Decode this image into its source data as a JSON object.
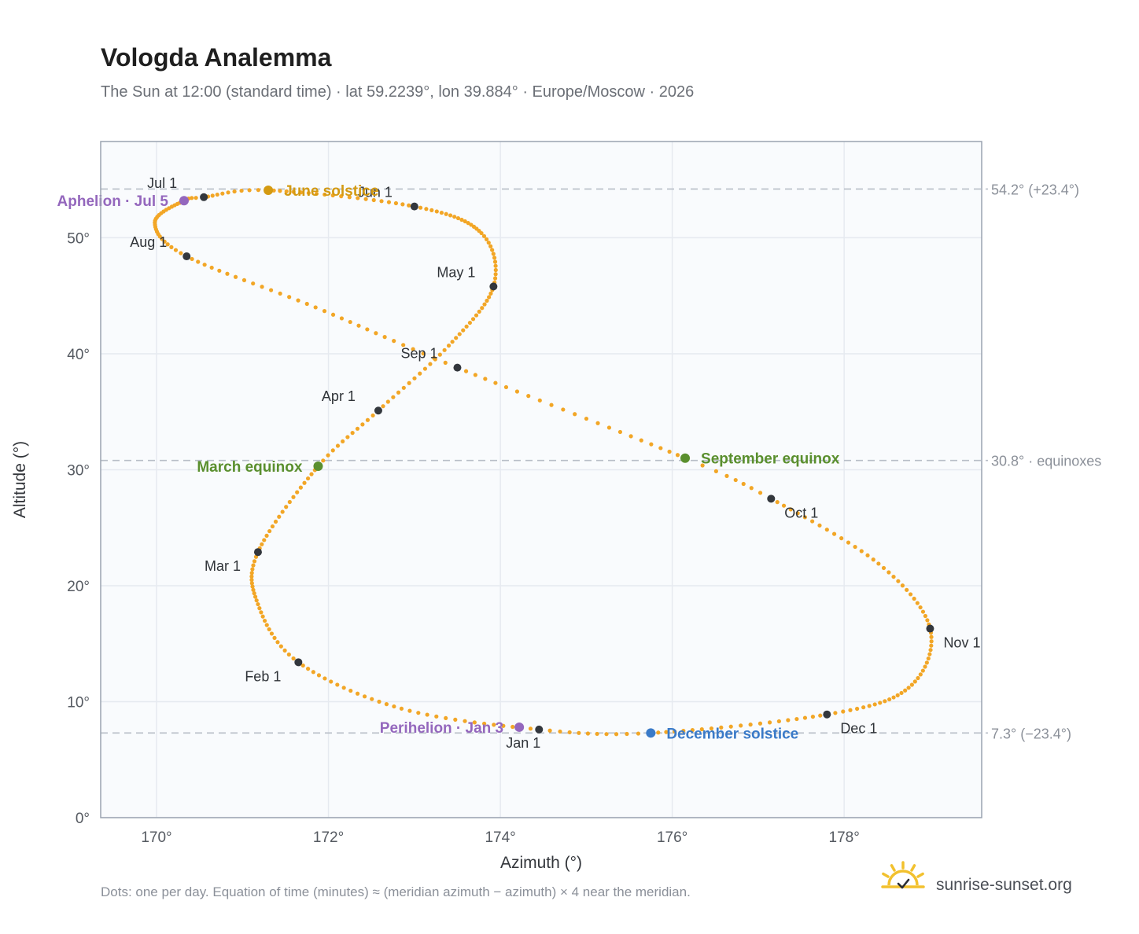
{
  "header": {
    "title": "Vologda Analemma",
    "subtitle": "The Sun at 12:00 (standard time) · lat 59.2239°, lon 39.884° · Europe/Moscow · 2026"
  },
  "footer": {
    "note": "Dots: one per day. Equation of time (minutes) ≈ (meridian azimuth − azimuth) × 4 near the meridian.",
    "brand": "sunrise-sunset.org"
  },
  "colors": {
    "path": "#f2a626",
    "month_marker": "#33373d",
    "june_solstice": "#d49a12",
    "december_solstice": "#3a7ac8",
    "equinox": "#5a8f2e",
    "apsis": "#9467bd",
    "grid": "#e6eaf0",
    "plot_bg": "#f9fbfd",
    "frame": "#9aa3b0",
    "ref_line": "#b8bec7",
    "logo": "#f2c12e"
  },
  "chart_data": {
    "type": "scatter",
    "xlabel": "Azimuth (°)",
    "ylabel": "Altitude (°)",
    "xlim": [
      169.35,
      179.6
    ],
    "ylim": [
      0,
      58.3
    ],
    "xticks": [
      {
        "value": 170,
        "label": "170°"
      },
      {
        "value": 172,
        "label": "172°"
      },
      {
        "value": 174,
        "label": "174°"
      },
      {
        "value": 176,
        "label": "176°"
      },
      {
        "value": 178,
        "label": "178°"
      }
    ],
    "yticks": [
      {
        "value": 0,
        "label": "0°"
      },
      {
        "value": 10,
        "label": "10°"
      },
      {
        "value": 20,
        "label": "20°"
      },
      {
        "value": 30,
        "label": "30°"
      },
      {
        "value": 40,
        "label": "40°"
      },
      {
        "value": 50,
        "label": "50°"
      }
    ],
    "grid": true,
    "reference_lines": [
      {
        "y": 54.2,
        "label": "54.2° (+23.4°)"
      },
      {
        "y": 30.8,
        "label": "30.8° · equinoxes"
      },
      {
        "y": 7.3,
        "label": "7.3° (−23.4°)"
      }
    ],
    "path_control_points": [
      {
        "day": 1,
        "azimuth": 174.45,
        "altitude": 7.6
      },
      {
        "day": 16,
        "azimuth": 172.85,
        "altitude": 9.4
      },
      {
        "day": 32,
        "azimuth": 171.65,
        "altitude": 13.4
      },
      {
        "day": 46,
        "azimuth": 171.18,
        "altitude": 18.4
      },
      {
        "day": 60,
        "azimuth": 171.18,
        "altitude": 22.9
      },
      {
        "day": 79,
        "azimuth": 171.88,
        "altitude": 30.3
      },
      {
        "day": 91,
        "azimuth": 172.58,
        "altitude": 35.1
      },
      {
        "day": 105,
        "azimuth": 173.4,
        "altitude": 40.7
      },
      {
        "day": 121,
        "azimuth": 173.92,
        "altitude": 45.8
      },
      {
        "day": 135,
        "azimuth": 173.78,
        "altitude": 50.4
      },
      {
        "day": 152,
        "azimuth": 173.0,
        "altitude": 52.7
      },
      {
        "day": 172,
        "azimuth": 171.3,
        "altitude": 54.1
      },
      {
        "day": 182,
        "azimuth": 170.55,
        "altitude": 53.5
      },
      {
        "day": 186,
        "azimuth": 170.32,
        "altitude": 53.2
      },
      {
        "day": 200,
        "azimuth": 169.98,
        "altitude": 51.3
      },
      {
        "day": 213,
        "azimuth": 170.35,
        "altitude": 48.4
      },
      {
        "day": 229,
        "azimuth": 171.85,
        "altitude": 44.0
      },
      {
        "day": 244,
        "azimuth": 173.5,
        "altitude": 38.8
      },
      {
        "day": 266,
        "azimuth": 176.15,
        "altitude": 31.0
      },
      {
        "day": 274,
        "azimuth": 177.15,
        "altitude": 27.5
      },
      {
        "day": 290,
        "azimuth": 178.4,
        "altitude": 21.9
      },
      {
        "day": 305,
        "azimuth": 179.0,
        "altitude": 16.3
      },
      {
        "day": 320,
        "azimuth": 178.75,
        "altitude": 11.2
      },
      {
        "day": 335,
        "azimuth": 177.8,
        "altitude": 8.9
      },
      {
        "day": 355,
        "azimuth": 175.75,
        "altitude": 7.3
      },
      {
        "day": 366,
        "azimuth": 174.45,
        "altitude": 7.6
      }
    ],
    "month_markers": [
      {
        "label": "Jan 1",
        "azimuth": 174.45,
        "altitude": 7.6,
        "anchor": "below"
      },
      {
        "label": "Feb 1",
        "azimuth": 171.65,
        "altitude": 13.4,
        "anchor": "below-left"
      },
      {
        "label": "Mar 1",
        "azimuth": 171.18,
        "altitude": 22.9,
        "anchor": "below-left"
      },
      {
        "label": "Apr 1",
        "azimuth": 172.58,
        "altitude": 35.1,
        "anchor": "above-left"
      },
      {
        "label": "May 1",
        "azimuth": 173.92,
        "altitude": 45.8,
        "anchor": "above-left"
      },
      {
        "label": "Jun 1",
        "azimuth": 173.0,
        "altitude": 52.7,
        "anchor": "above-left"
      },
      {
        "label": "Jul 1",
        "azimuth": 170.55,
        "altitude": 53.5,
        "anchor": "above-left"
      },
      {
        "label": "Aug 1",
        "azimuth": 170.35,
        "altitude": 48.4,
        "anchor": "above-left"
      },
      {
        "label": "Sep 1",
        "azimuth": 173.5,
        "altitude": 38.8,
        "anchor": "above-left"
      },
      {
        "label": "Oct 1",
        "azimuth": 177.15,
        "altitude": 27.5,
        "anchor": "below-right"
      },
      {
        "label": "Nov 1",
        "azimuth": 179.0,
        "altitude": 16.3,
        "anchor": "below-right"
      },
      {
        "label": "Dec 1",
        "azimuth": 177.8,
        "altitude": 8.9,
        "anchor": "below-right"
      }
    ],
    "events": [
      {
        "label": "June solstice",
        "azimuth": 171.3,
        "altitude": 54.1,
        "color": "#d49a12",
        "anchor": "right"
      },
      {
        "label": "December solstice",
        "azimuth": 175.75,
        "altitude": 7.3,
        "color": "#3a7ac8",
        "anchor": "right"
      },
      {
        "label": "March equinox",
        "azimuth": 171.88,
        "altitude": 30.3,
        "color": "#5a8f2e",
        "anchor": "left"
      },
      {
        "label": "September equinox",
        "azimuth": 176.15,
        "altitude": 31.0,
        "color": "#5a8f2e",
        "anchor": "right"
      },
      {
        "label": "Aphelion · Jul 5",
        "azimuth": 170.32,
        "altitude": 53.2,
        "color": "#9467bd",
        "anchor": "left"
      },
      {
        "label": "Perihelion · Jan 3",
        "azimuth": 174.22,
        "altitude": 7.8,
        "color": "#9467bd",
        "anchor": "left"
      }
    ]
  }
}
